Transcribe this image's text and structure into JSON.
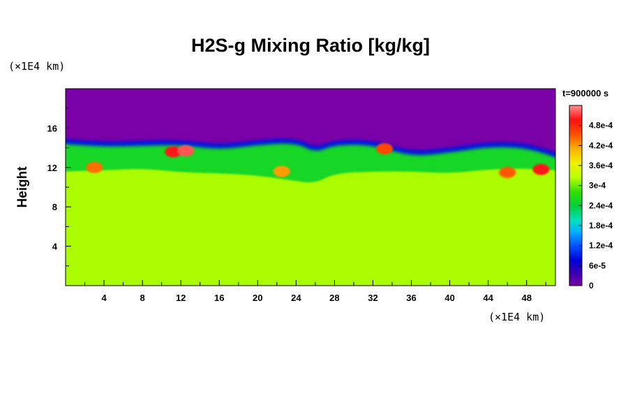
{
  "chart_data": {
    "type": "heatmap",
    "title": "H2S-g Mixing Ratio [kg/kg]",
    "ylabel": "Height",
    "xunit": "(×1E4 km)",
    "yunit": "(×1E4 km)",
    "time_label": "t=900000 s",
    "xlim": [
      0,
      51
    ],
    "ylim": [
      0,
      20
    ],
    "x_ticks": [
      4,
      8,
      12,
      16,
      20,
      24,
      28,
      32,
      36,
      40,
      44,
      48
    ],
    "y_ticks": [
      4,
      8,
      12,
      16
    ],
    "colorbar": {
      "min": 0,
      "max": 0.00054,
      "tick_values": [
        0,
        6e-05,
        0.00012,
        0.00018,
        0.00024,
        0.0003,
        0.00036,
        0.00042,
        0.00048
      ],
      "tick_labels": [
        "0",
        "6e-5",
        "1.2e-4",
        "1.8e-4",
        "2.4e-4",
        "3e-4",
        "3.6e-4",
        "4.2e-4",
        "4.8e-4"
      ]
    },
    "field": {
      "background_value": 0.0,
      "lower_layer_value": 0.00032,
      "lower_layer_top": [
        [
          0,
          11.6
        ],
        [
          4,
          11.7
        ],
        [
          8,
          11.9
        ],
        [
          12,
          11.5
        ],
        [
          16,
          11.4
        ],
        [
          20,
          11.2
        ],
        [
          24,
          10.6
        ],
        [
          26,
          10.4
        ],
        [
          28,
          11.4
        ],
        [
          32,
          11.6
        ],
        [
          36,
          11.6
        ],
        [
          40,
          11.4
        ],
        [
          44,
          11.8
        ],
        [
          48,
          11.9
        ],
        [
          51,
          11.7
        ]
      ],
      "mixing_zone_top": [
        [
          0,
          14.9
        ],
        [
          4,
          14.6
        ],
        [
          8,
          14.7
        ],
        [
          12,
          14.8
        ],
        [
          16,
          14.3
        ],
        [
          20,
          14.8
        ],
        [
          24,
          15.0
        ],
        [
          26,
          14.0
        ],
        [
          28,
          14.8
        ],
        [
          32,
          14.8
        ],
        [
          36,
          13.6
        ],
        [
          40,
          14.0
        ],
        [
          44,
          14.6
        ],
        [
          48,
          14.5
        ],
        [
          51,
          13.4
        ]
      ],
      "features": [
        {
          "x": 11.2,
          "y": 13.6,
          "value": 0.0005
        },
        {
          "x": 12.5,
          "y": 13.7,
          "value": 0.00052
        },
        {
          "x": 33.2,
          "y": 13.9,
          "value": 0.00046
        },
        {
          "x": 49.5,
          "y": 11.8,
          "value": 0.0005
        },
        {
          "x": 46.0,
          "y": 11.5,
          "value": 0.00045
        },
        {
          "x": 3.0,
          "y": 12.0,
          "value": 0.00044
        },
        {
          "x": 22.5,
          "y": 11.6,
          "value": 0.00042
        }
      ]
    }
  }
}
